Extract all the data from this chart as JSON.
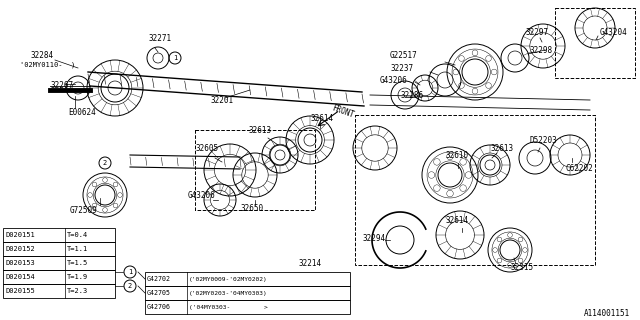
{
  "bg_color": "#ffffff",
  "line_color": "#000000",
  "ref_number": "A114001151",
  "table1_rows": [
    [
      "D020151",
      "T=0.4"
    ],
    [
      "D020152",
      "T=1.1"
    ],
    [
      "D020153",
      "T=1.5"
    ],
    [
      "D020154",
      "T=1.9"
    ],
    [
      "D020155",
      "T=2.3"
    ]
  ],
  "table2_rows": [
    [
      "G42702",
      "('02MY0009-'02MY0202)"
    ],
    [
      "G42705",
      "('02MY0203-'04MY0303)"
    ],
    [
      "G42706",
      "('04MY0303-         >"
    ]
  ]
}
